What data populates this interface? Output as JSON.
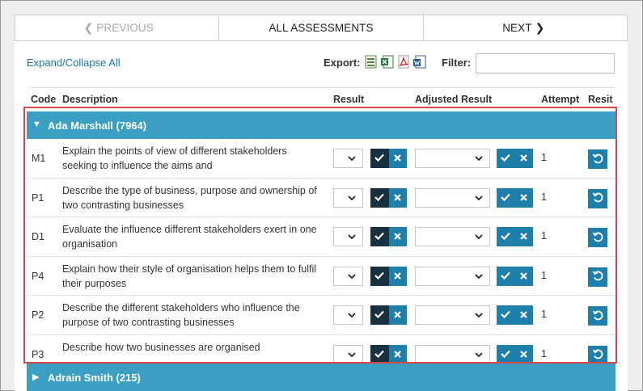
{
  "nav": {
    "previous_label": "PREVIOUS",
    "all_label": "ALL ASSESSMENTS",
    "next_label": "NEXT"
  },
  "toolbar": {
    "expand_collapse_label": "Expand/Collapse All",
    "export_label": "Export:",
    "export_formats": [
      "csv-icon",
      "excel-icon",
      "pdf-icon",
      "word-icon"
    ],
    "filter_label": "Filter:",
    "filter_value": ""
  },
  "columns": {
    "code": "Code",
    "description": "Description",
    "result": "Result",
    "adjusted_result": "Adjusted Result",
    "attempt": "Attempt",
    "resit": "Resit"
  },
  "groups": [
    {
      "name": "Ada Marshall (7964)",
      "expanded": true
    },
    {
      "name": "Adrain Smith (215)",
      "expanded": false
    }
  ],
  "rows": [
    {
      "code": "M1",
      "description": "Explain the points of view of different stakeholders seeking to influence the aims and",
      "attempt": "1"
    },
    {
      "code": "P1",
      "description": "Describe the type of business, purpose and ownership of two contrasting businesses",
      "attempt": "1"
    },
    {
      "code": "D1",
      "description": "Evaluate the influence different stakeholders exert in one organisation",
      "attempt": "1"
    },
    {
      "code": "P4",
      "description": "Explain how their style of organisation helps them to fulfil their purposes",
      "attempt": "1"
    },
    {
      "code": "P2",
      "description": "Describe the different stakeholders who influence the purpose of two contrasting businesses",
      "attempt": "1"
    },
    {
      "code": "P3",
      "description": "Describe how two businesses are organised",
      "attempt": "1"
    }
  ],
  "colors": {
    "accent": "#3a9fc3",
    "button_blue": "#1f7fab",
    "button_dark": "#17303f",
    "highlight": "#d9474f",
    "link": "#1a76a6"
  }
}
